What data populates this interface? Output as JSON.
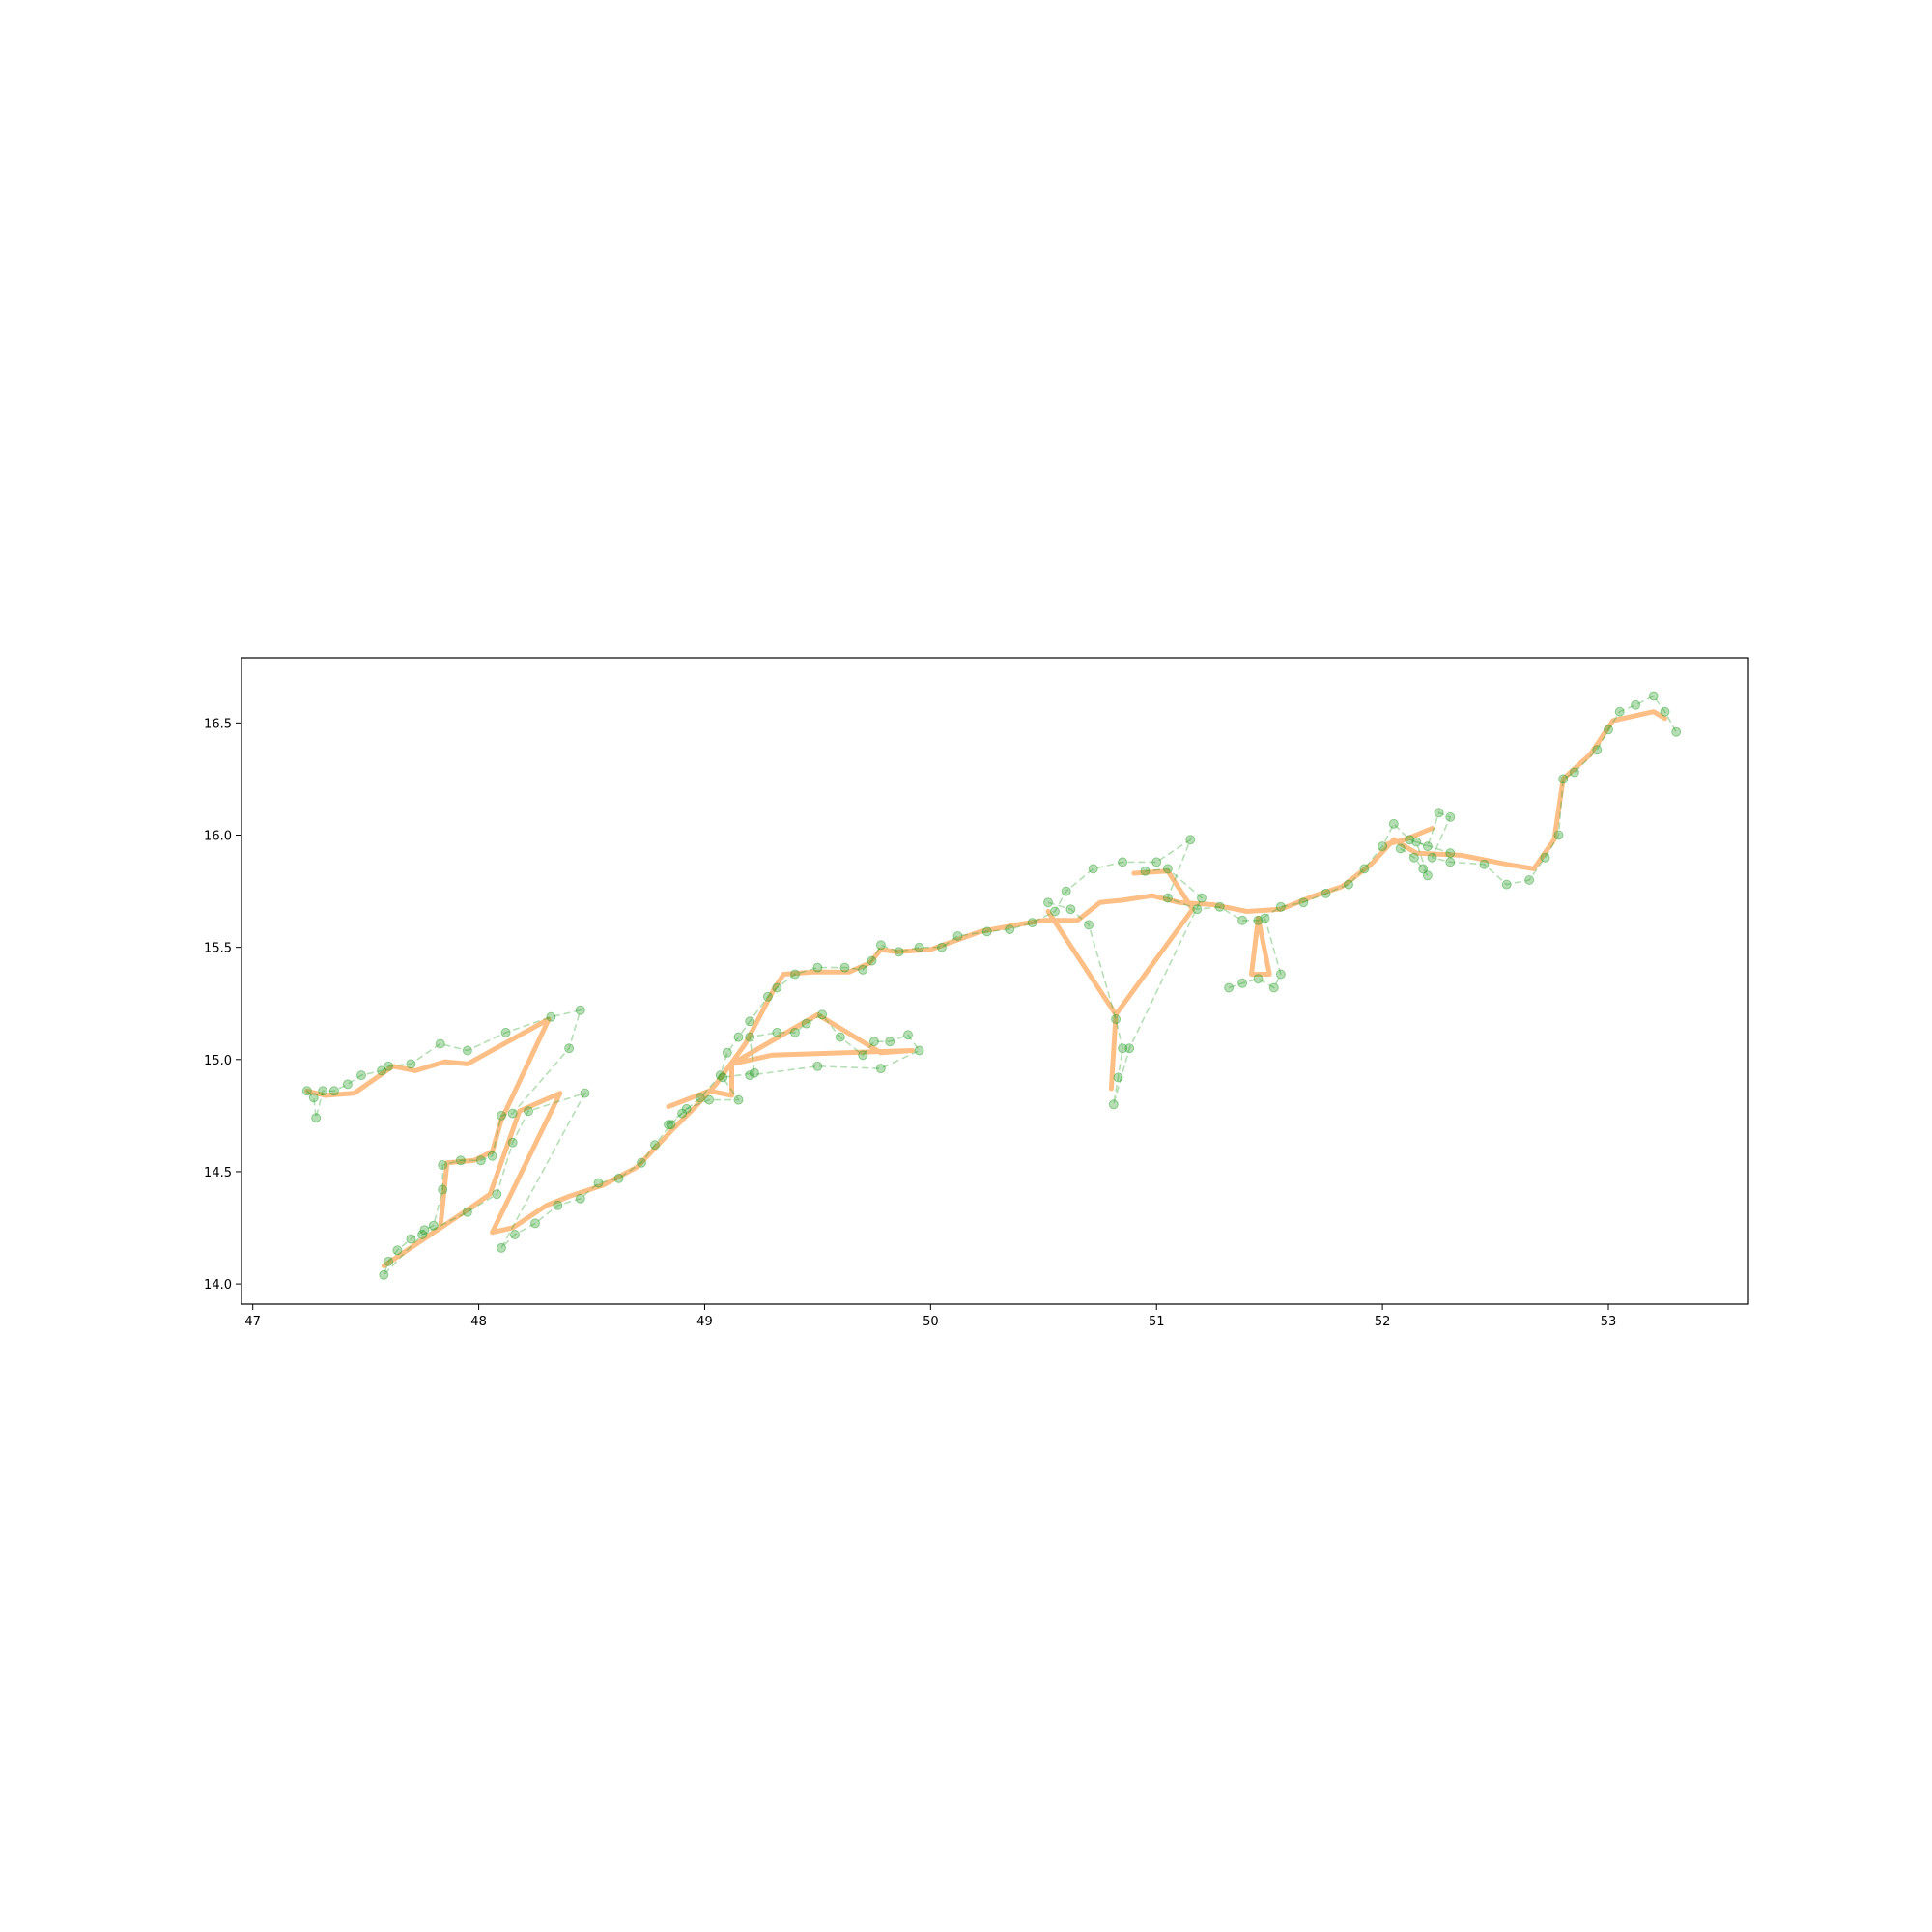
{
  "chart_data": {
    "type": "line",
    "title": "",
    "xlabel": "",
    "ylabel": "",
    "xlim": [
      46.95,
      53.62
    ],
    "ylim": [
      13.91,
      16.79
    ],
    "x_ticks": [
      47,
      48,
      49,
      50,
      51,
      52,
      53
    ],
    "y_ticks": [
      14.0,
      14.5,
      15.0,
      15.5,
      16.0,
      16.5
    ],
    "x_tick_labels": [
      "47",
      "48",
      "49",
      "50",
      "51",
      "52",
      "53"
    ],
    "y_tick_labels": [
      "14.0",
      "14.5",
      "15.0",
      "15.5",
      "16.0",
      "16.5"
    ],
    "grid": false,
    "legend": "none",
    "series": [
      {
        "style": "thick-solid-line",
        "color": "#fdbf85",
        "points": [
          [
            47.24,
            14.86
          ],
          [
            47.32,
            14.84
          ],
          [
            47.45,
            14.85
          ],
          [
            47.62,
            14.97
          ],
          [
            47.72,
            14.95
          ],
          [
            47.85,
            14.99
          ],
          [
            47.95,
            14.98
          ],
          [
            48.31,
            15.18
          ],
          [
            48.1,
            14.73
          ],
          [
            48.06,
            14.59
          ],
          [
            47.98,
            14.55
          ],
          [
            47.86,
            14.54
          ],
          [
            47.83,
            14.25
          ],
          [
            47.58,
            14.08
          ],
          [
            47.95,
            14.33
          ],
          [
            48.05,
            14.4
          ],
          [
            48.18,
            14.77
          ],
          [
            48.36,
            14.85
          ],
          [
            48.06,
            14.23
          ],
          [
            48.15,
            14.25
          ],
          [
            48.3,
            14.35
          ],
          [
            48.4,
            14.39
          ],
          [
            48.55,
            14.44
          ],
          [
            48.7,
            14.52
          ],
          [
            48.86,
            14.69
          ],
          [
            48.95,
            14.78
          ],
          [
            49.05,
            14.89
          ],
          [
            49.18,
            15.07
          ],
          [
            49.31,
            15.32
          ],
          [
            49.35,
            15.38
          ],
          [
            49.48,
            15.39
          ],
          [
            49.64,
            15.39
          ],
          [
            49.73,
            15.43
          ],
          [
            49.78,
            15.49
          ],
          [
            49.85,
            15.48
          ],
          [
            50.0,
            15.49
          ],
          [
            50.22,
            15.57
          ],
          [
            50.38,
            15.6
          ],
          [
            50.5,
            15.62
          ],
          [
            50.65,
            15.62
          ],
          [
            50.75,
            15.7
          ],
          [
            50.85,
            15.71
          ],
          [
            50.98,
            15.73
          ],
          [
            51.1,
            15.7
          ],
          [
            51.25,
            15.69
          ],
          [
            51.4,
            15.66
          ],
          [
            51.55,
            15.67
          ],
          [
            51.7,
            15.73
          ],
          [
            51.82,
            15.77
          ],
          [
            51.95,
            15.87
          ],
          [
            52.05,
            15.98
          ],
          [
            52.15,
            15.92
          ],
          [
            52.35,
            15.91
          ],
          [
            52.55,
            15.87
          ],
          [
            52.67,
            15.85
          ],
          [
            52.76,
            15.98
          ],
          [
            52.8,
            16.25
          ],
          [
            52.92,
            16.36
          ],
          [
            53.02,
            16.51
          ],
          [
            53.2,
            16.55
          ],
          [
            53.25,
            16.52
          ]
        ]
      },
      {
        "style": "dashed-line-with-markers",
        "color": "#2ca02c",
        "points": [
          [
            47.24,
            14.86
          ],
          [
            47.27,
            14.83
          ],
          [
            47.28,
            14.74
          ],
          [
            47.31,
            14.86
          ],
          [
            47.36,
            14.86
          ],
          [
            47.42,
            14.89
          ],
          [
            47.48,
            14.93
          ],
          [
            47.57,
            14.95
          ],
          [
            47.6,
            14.97
          ],
          [
            47.7,
            14.98
          ],
          [
            47.83,
            15.07
          ],
          [
            47.95,
            15.04
          ],
          [
            48.12,
            15.12
          ],
          [
            48.32,
            15.19
          ],
          [
            48.45,
            15.22
          ],
          [
            48.4,
            15.05
          ],
          [
            48.15,
            14.76
          ],
          [
            48.1,
            14.75
          ],
          [
            48.06,
            14.57
          ],
          [
            48.01,
            14.55
          ],
          [
            47.92,
            14.55
          ],
          [
            47.84,
            14.53
          ],
          [
            47.84,
            14.42
          ],
          [
            47.8,
            14.26
          ],
          [
            47.76,
            14.24
          ],
          [
            47.7,
            14.2
          ],
          [
            47.64,
            14.15
          ],
          [
            47.6,
            14.1
          ],
          [
            47.58,
            14.04
          ],
          [
            47.75,
            14.22
          ],
          [
            47.95,
            14.32
          ],
          [
            48.08,
            14.4
          ],
          [
            48.15,
            14.63
          ],
          [
            48.22,
            14.77
          ],
          [
            48.47,
            14.85
          ],
          [
            48.1,
            14.16
          ],
          [
            48.16,
            14.22
          ],
          [
            48.25,
            14.27
          ],
          [
            48.35,
            14.35
          ],
          [
            48.45,
            14.38
          ],
          [
            48.53,
            14.45
          ],
          [
            48.62,
            14.47
          ],
          [
            48.72,
            14.54
          ],
          [
            48.78,
            14.62
          ],
          [
            48.85,
            14.71
          ],
          [
            48.9,
            14.76
          ],
          [
            48.98,
            14.83
          ],
          [
            49.07,
            14.93
          ],
          [
            49.1,
            15.03
          ],
          [
            49.15,
            15.1
          ],
          [
            49.2,
            15.17
          ],
          [
            49.28,
            15.28
          ],
          [
            49.32,
            15.32
          ],
          [
            49.4,
            15.38
          ],
          [
            49.5,
            15.41
          ],
          [
            49.62,
            15.41
          ],
          [
            49.7,
            15.4
          ],
          [
            49.74,
            15.44
          ],
          [
            49.78,
            15.51
          ],
          [
            49.86,
            15.48
          ],
          [
            49.95,
            15.5
          ],
          [
            50.05,
            15.5
          ],
          [
            50.12,
            15.55
          ],
          [
            50.25,
            15.57
          ],
          [
            50.35,
            15.58
          ],
          [
            50.45,
            15.61
          ],
          [
            50.55,
            15.66
          ],
          [
            50.6,
            15.75
          ],
          [
            50.72,
            15.85
          ],
          [
            50.85,
            15.88
          ],
          [
            51.0,
            15.88
          ],
          [
            51.15,
            15.98
          ],
          [
            51.05,
            15.72
          ],
          [
            51.18,
            15.67
          ],
          [
            51.28,
            15.68
          ],
          [
            51.38,
            15.62
          ],
          [
            51.45,
            15.62
          ],
          [
            51.55,
            15.68
          ],
          [
            51.65,
            15.7
          ],
          [
            51.75,
            15.74
          ],
          [
            51.85,
            15.78
          ],
          [
            51.92,
            15.85
          ],
          [
            52.0,
            15.95
          ],
          [
            52.05,
            16.05
          ],
          [
            52.12,
            15.98
          ],
          [
            52.2,
            15.95
          ],
          [
            52.25,
            16.1
          ],
          [
            52.3,
            16.08
          ],
          [
            52.22,
            15.9
          ],
          [
            52.3,
            15.88
          ],
          [
            52.45,
            15.87
          ],
          [
            52.55,
            15.78
          ],
          [
            52.65,
            15.8
          ],
          [
            52.72,
            15.9
          ],
          [
            52.78,
            16.0
          ],
          [
            52.8,
            16.25
          ],
          [
            52.85,
            16.28
          ],
          [
            52.95,
            16.38
          ],
          [
            53.0,
            16.47
          ],
          [
            53.05,
            16.55
          ],
          [
            53.12,
            16.58
          ],
          [
            53.2,
            16.62
          ],
          [
            53.25,
            16.55
          ],
          [
            53.3,
            16.46
          ]
        ]
      },
      {
        "style": "thick-solid-line",
        "color": "#fdbf85",
        "points": [
          [
            48.84,
            14.79
          ],
          [
            49.02,
            14.86
          ],
          [
            49.12,
            14.84
          ],
          [
            49.12,
            14.98
          ],
          [
            49.5,
            15.2
          ],
          [
            49.78,
            15.03
          ],
          [
            49.92,
            15.04
          ],
          [
            49.3,
            15.02
          ],
          [
            49.12,
            14.98
          ]
        ]
      },
      {
        "style": "thick-solid-line",
        "color": "#fdbf85",
        "points": [
          [
            50.52,
            15.66
          ],
          [
            50.82,
            15.2
          ],
          [
            50.8,
            14.87
          ],
          [
            50.82,
            15.2
          ],
          [
            51.16,
            15.67
          ],
          [
            51.05,
            15.84
          ],
          [
            50.9,
            15.83
          ]
        ]
      },
      {
        "style": "thick-solid-line",
        "color": "#fdbf85",
        "points": [
          [
            51.45,
            15.63
          ],
          [
            51.42,
            15.38
          ],
          [
            51.5,
            15.38
          ],
          [
            51.45,
            15.63
          ]
        ]
      },
      {
        "style": "thick-solid-line",
        "color": "#fdbf85",
        "points": [
          [
            52.02,
            15.96
          ],
          [
            52.1,
            15.98
          ],
          [
            52.22,
            16.03
          ]
        ]
      },
      {
        "style": "dashed-line-with-markers",
        "color": "#2ca02c",
        "points": [
          [
            48.84,
            14.71
          ],
          [
            48.92,
            14.78
          ],
          [
            49.02,
            14.82
          ],
          [
            49.15,
            14.82
          ],
          [
            49.08,
            14.92
          ],
          [
            49.22,
            14.94
          ],
          [
            49.2,
            15.1
          ],
          [
            49.32,
            15.12
          ],
          [
            49.4,
            15.12
          ],
          [
            49.45,
            15.16
          ],
          [
            49.52,
            15.2
          ],
          [
            49.6,
            15.1
          ],
          [
            49.7,
            15.02
          ],
          [
            49.75,
            15.08
          ],
          [
            49.82,
            15.08
          ],
          [
            49.9,
            15.11
          ],
          [
            49.95,
            15.04
          ],
          [
            49.78,
            14.96
          ],
          [
            49.5,
            14.97
          ],
          [
            49.2,
            14.93
          ]
        ]
      },
      {
        "style": "dashed-line-with-markers",
        "color": "#2ca02c",
        "points": [
          [
            50.52,
            15.7
          ],
          [
            50.62,
            15.67
          ],
          [
            50.7,
            15.6
          ],
          [
            50.82,
            15.18
          ],
          [
            50.85,
            15.05
          ],
          [
            50.83,
            14.92
          ],
          [
            50.81,
            14.8
          ],
          [
            50.88,
            15.05
          ],
          [
            51.2,
            15.72
          ],
          [
            51.05,
            15.85
          ],
          [
            50.95,
            15.84
          ]
        ]
      },
      {
        "style": "dashed-line-with-markers",
        "color": "#2ca02c",
        "points": [
          [
            51.32,
            15.32
          ],
          [
            51.38,
            15.34
          ],
          [
            51.45,
            15.36
          ],
          [
            51.52,
            15.32
          ],
          [
            51.55,
            15.38
          ],
          [
            51.48,
            15.63
          ]
        ]
      },
      {
        "style": "dashed-line-with-markers",
        "color": "#2ca02c",
        "points": [
          [
            52.08,
            15.94
          ],
          [
            52.14,
            15.9
          ],
          [
            52.18,
            15.85
          ],
          [
            52.2,
            15.82
          ],
          [
            52.15,
            15.97
          ],
          [
            52.3,
            15.92
          ]
        ]
      }
    ]
  }
}
